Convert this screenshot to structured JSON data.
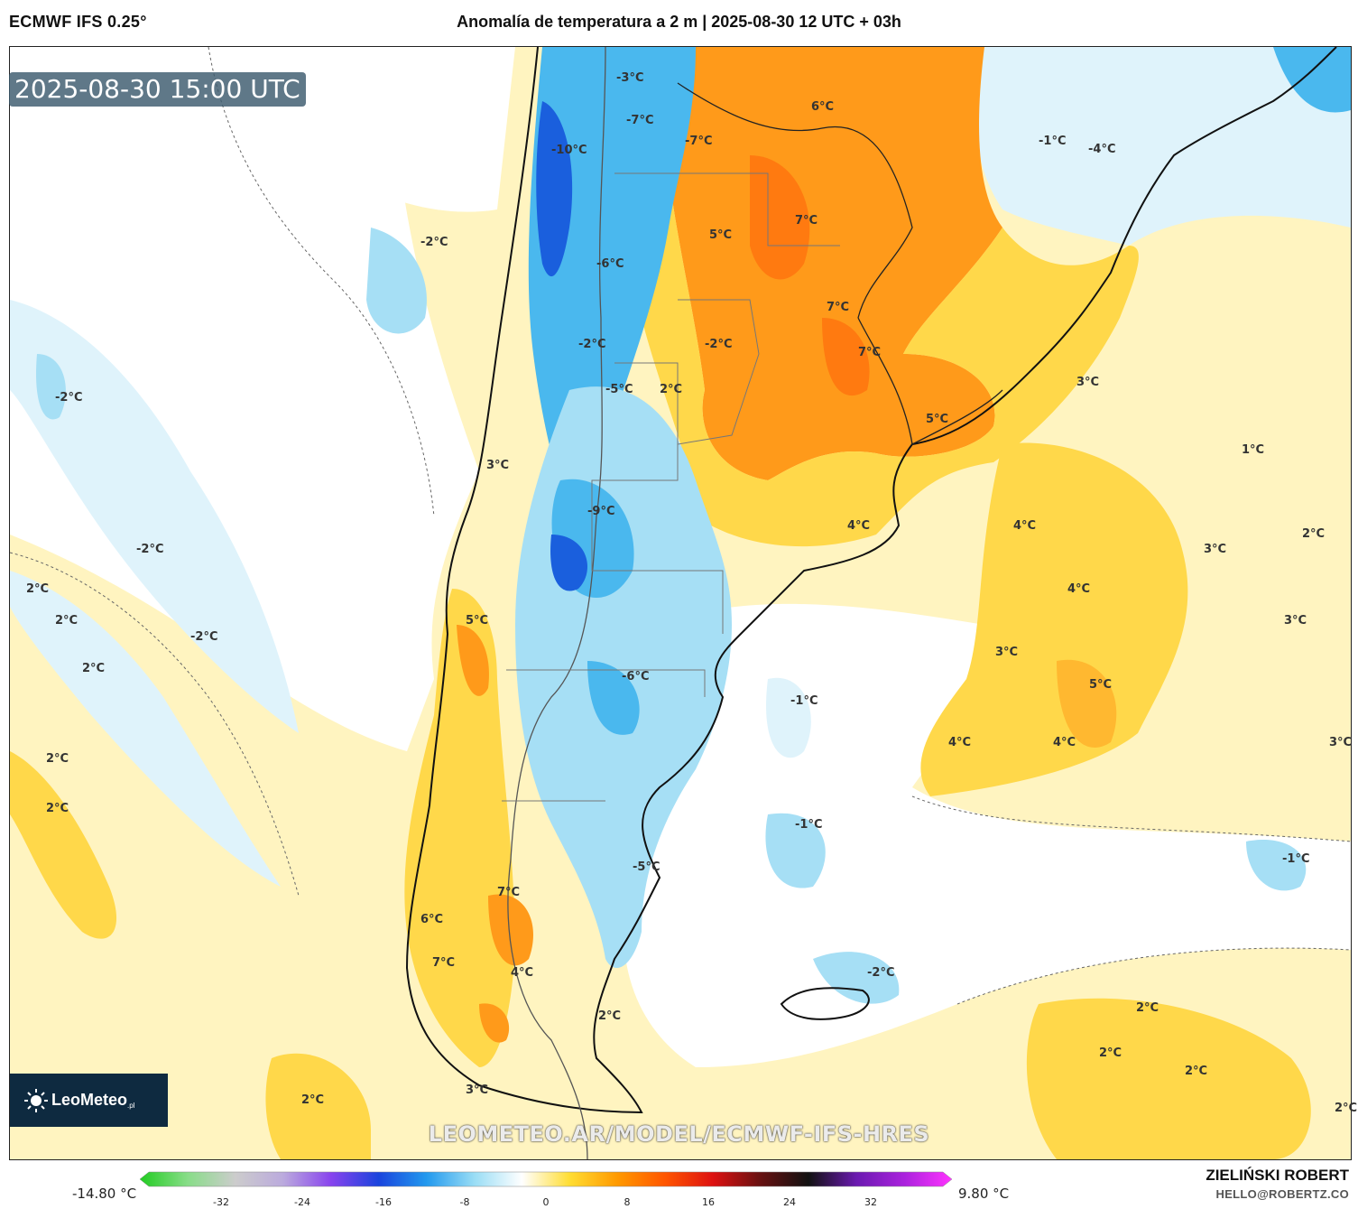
{
  "header": {
    "model": "ECMWF IFS 0.25°",
    "title": "Anomalía de temperatura a 2 m | 2025-08-30 12 UTC + 03h"
  },
  "valid_time": "2025-08-30 15:00 UTC",
  "watermark_url": "LEOMETEO.AR/MODEL/ECMWF-IFS-HRES",
  "logo": {
    "brand": "LeoMeteo",
    "suffix": ".pl"
  },
  "author": {
    "name": "ZIELIŃSKI ROBERT",
    "email": "HELLO@ROBERTZ.CO"
  },
  "colorbar": {
    "min_label": "-14.80 °C",
    "max_label": "9.80 °C",
    "ticks": [
      "-32",
      "-24",
      "-16",
      "-8",
      "0",
      "8",
      "16",
      "24",
      "32"
    ],
    "tick_values": [
      -32,
      -24,
      -16,
      -8,
      0,
      8,
      16,
      24,
      32
    ],
    "stops": [
      "#22cc22",
      "#88dd88",
      "#cccccc",
      "#bbaadd",
      "#8844ee",
      "#1a44dd",
      "#2299ee",
      "#99ddf5",
      "#ffffff",
      "#ffdd33",
      "#ff9900",
      "#ff5500",
      "#dd1111",
      "#661111",
      "#111111",
      "#6a1ab0",
      "#aa22dd",
      "#ff33ff"
    ]
  },
  "contour_labels": [
    "-10°C",
    "-3°C",
    "-7°C",
    "-7°C",
    "6°C",
    "-1°C",
    "-4°C",
    "-2°C",
    "-6°C",
    "5°C",
    "7°C",
    "7°C",
    "-2°C",
    "-2°C",
    "7°C",
    "-2°C",
    "-5°C",
    "2°C",
    "3°C",
    "5°C",
    "3°C",
    "1°C",
    "-9°C",
    "4°C",
    "4°C",
    "2°C",
    "-2°C",
    "3°C",
    "2°C",
    "2°C",
    "5°C",
    "-2°C",
    "4°C",
    "3°C",
    "2°C",
    "-6°C",
    "-1°C",
    "3°C",
    "5°C",
    "2°C",
    "4°C",
    "4°C",
    "3°C",
    "2°C",
    "-1°C",
    "-5°C",
    "-1°C",
    "7°C",
    "6°C",
    "7°C",
    "4°C",
    "-2°C",
    "2°C",
    "2°C",
    "2°C",
    "2°C",
    "3°C",
    "2°C",
    "2°C"
  ],
  "colors": {
    "warm_pale": "#fff4c0",
    "warm_yellow": "#ffd84a",
    "warm_orange": "#ff9a1a",
    "warm_deep": "#ff7a10",
    "cool_pale": "#dff3fb",
    "cool_light": "#a6dff5",
    "cool_mid": "#4ab8ee",
    "cool_deep": "#1a5fdd",
    "ocean_white": "#ffffff",
    "logo_bg": "#0e2a40",
    "badge_bg": "#3c5a6e"
  }
}
